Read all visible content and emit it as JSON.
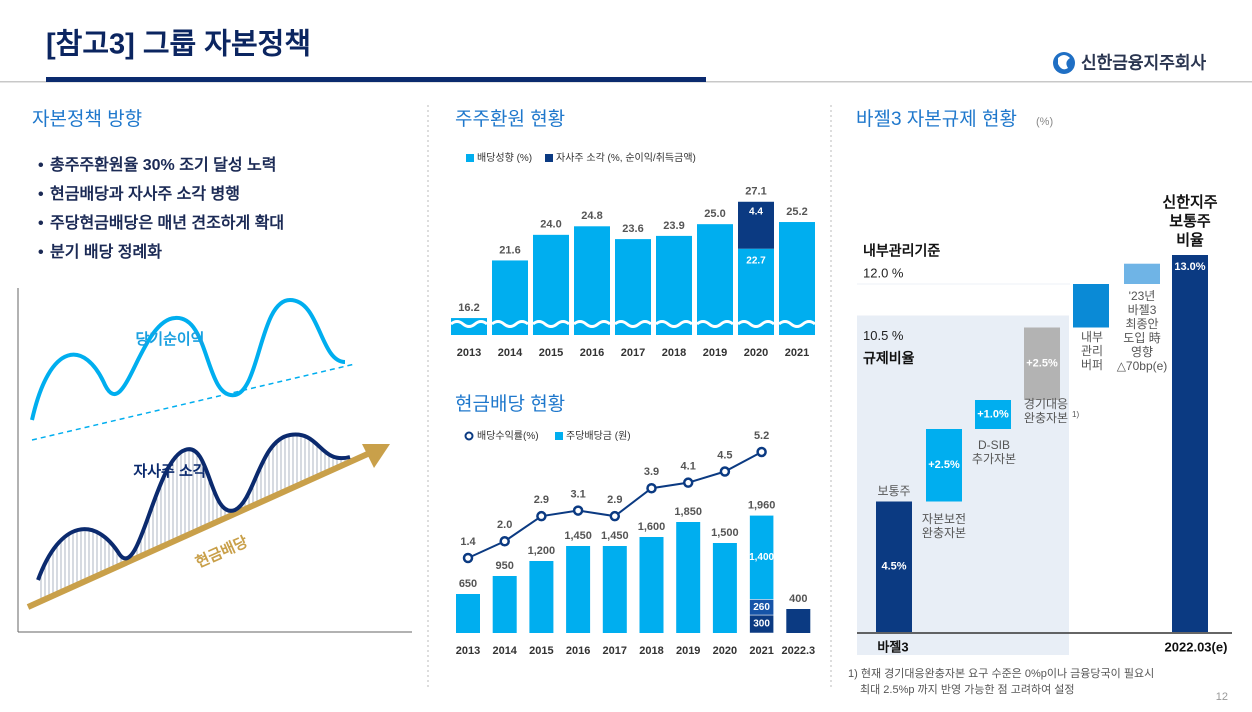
{
  "header": {
    "title": "[참고3] 그룹 자본정책",
    "company": "신한금융지주회사",
    "page": "12"
  },
  "policy": {
    "title": "자본정책 방향",
    "bullets": [
      "총주주환원율 30% 조기 달성 노력",
      "현금배당과 자사주 소각 병행",
      "주당현금배당은 매년 견조하게 확대",
      "분기 배당 정례화"
    ],
    "illustration": {
      "net_income": "당기순이익",
      "buyback": "자사주 소각",
      "dividend": "현금배당"
    }
  },
  "chart_data": [
    {
      "type": "bar",
      "title": "주주환원 현황",
      "stacked": true,
      "categories": [
        "2013",
        "2014",
        "2015",
        "2016",
        "2017",
        "2018",
        "2019",
        "2020",
        "2021"
      ],
      "series": [
        {
          "name": "배당성향 (%)",
          "color": "#00aeef",
          "values": [
            16.2,
            21.6,
            24.0,
            24.8,
            23.6,
            23.9,
            25.0,
            22.7,
            25.2
          ],
          "value_labels": [
            "16.2",
            "21.6",
            "24.0",
            "24.8",
            "23.6",
            "23.9",
            "25.0",
            "22.7",
            "25.2"
          ]
        },
        {
          "name": "자사주 소각 (%, 순이익/취득금액)",
          "color": "#0b3a82",
          "values": [
            null,
            null,
            null,
            null,
            null,
            null,
            null,
            4.4,
            null
          ]
        }
      ],
      "totals": [
        null,
        null,
        null,
        null,
        null,
        null,
        null,
        27.1,
        null
      ]
    },
    {
      "type": "bar_line",
      "title": "현금배당 현황",
      "categories": [
        "2013",
        "2014",
        "2015",
        "2016",
        "2017",
        "2018",
        "2019",
        "2020",
        "2021",
        "2022.3"
      ],
      "series": [
        {
          "name": "배당수익률(%)",
          "type": "line",
          "color": "#0b3a82",
          "values": [
            1.4,
            2.0,
            2.9,
            3.1,
            2.9,
            3.9,
            4.1,
            4.5,
            5.2,
            null
          ],
          "value_labels": [
            "1.4",
            "2.0",
            "2.9",
            "3.1",
            "2.9",
            "3.9",
            "4.1",
            "4.5",
            "5.2",
            null
          ]
        },
        {
          "name": "주당배당금 (원)",
          "type": "bar",
          "color": "#00aeef",
          "colors": [
            "#00aeef",
            "#00aeef",
            "#00aeef",
            "#00aeef",
            "#00aeef",
            "#00aeef",
            "#00aeef",
            "#00aeef",
            "#00aeef",
            "#0b3a82"
          ],
          "values": [
            650,
            950,
            1200,
            1450,
            1450,
            1600,
            1850,
            1500,
            1960,
            400
          ],
          "value_labels": [
            "650",
            "950",
            "1,200",
            "1,450",
            "1,450",
            "1,600",
            "1,850",
            "1,500",
            "1,960",
            "400"
          ]
        }
      ],
      "breakdown": {
        "category": "2021",
        "values": [
          300,
          260,
          1400
        ],
        "value_labels": [
          "300",
          "260",
          "1,400"
        ],
        "colors": [
          "#0b3a82",
          "#1654a8",
          "#00aeef"
        ]
      }
    },
    {
      "type": "waterfall",
      "title": "바젤3 자본규제 현황",
      "unit": "(%)",
      "steps": [
        {
          "label": [
            "보통주"
          ],
          "value": 4.5,
          "value_label": "4.5%",
          "color": "#0b3a82"
        },
        {
          "label": [
            "자본보전",
            "완충자본"
          ],
          "value": 2.5,
          "value_label": "+2.5%",
          "color": "#00aeef"
        },
        {
          "label": [
            "D-SIB",
            "추가자본"
          ],
          "value": 1.0,
          "value_label": "+1.0%",
          "color": "#00aeef"
        },
        {
          "label": [
            "경기대응",
            "완충자본"
          ],
          "value": 2.5,
          "value_label": "+2.5%",
          "color": "#b3b3b3",
          "note": "1)"
        },
        {
          "label": [
            "내부",
            "관리",
            "버퍼"
          ],
          "value": 1.5,
          "color": "#0a8ad6"
        },
        {
          "label": [
            "'23년",
            "바젤3",
            "최종안",
            "도입 時",
            "영향",
            "△70bp(e)"
          ],
          "value": 0.7,
          "color": "#6fb4e6"
        }
      ],
      "total": {
        "label": [
          "신한지주",
          "보통주",
          "비율"
        ],
        "value": 13.0,
        "value_label": "13.0%",
        "color": "#0b3a82"
      },
      "reference_lines": [
        {
          "label": "내부관리기준",
          "value": 12.0,
          "value_label": "12.0 %"
        },
        {
          "label": "규제비율",
          "value": 10.5,
          "value_label": "10.5 %"
        }
      ],
      "x_labels": [
        "바젤3",
        "2022.03(e)"
      ],
      "footnote": [
        "1) 현재 경기대응완충자본 요구 수준은 0%p이나 금융당국이 필요시",
        "최대 2.5%p 까지 반영 가능한 점 고려하여 설정"
      ]
    }
  ]
}
